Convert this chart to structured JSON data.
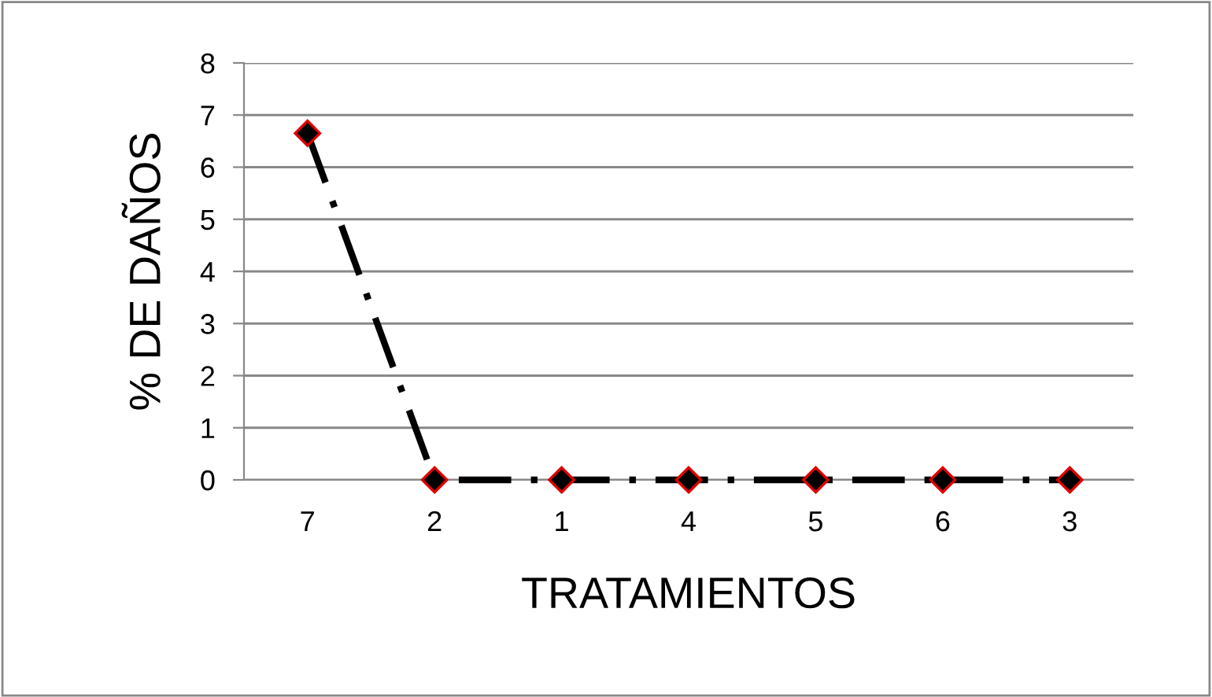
{
  "chart_data": {
    "type": "line",
    "xlabel": "TRATAMIENTOS",
    "ylabel": "% DE DAÑOS",
    "categories": [
      "7",
      "2",
      "1",
      "4",
      "5",
      "6",
      "3"
    ],
    "series": [
      {
        "color": "#000000",
        "values": [
          6.65,
          0,
          0,
          0,
          0,
          0,
          0
        ]
      }
    ],
    "ylim": [
      0,
      8
    ],
    "yticks": [
      0,
      1,
      2,
      3,
      4,
      5,
      6,
      7,
      8
    ],
    "grid": "y",
    "marker": "diamond",
    "line_style": "dashed",
    "legend": false
  }
}
